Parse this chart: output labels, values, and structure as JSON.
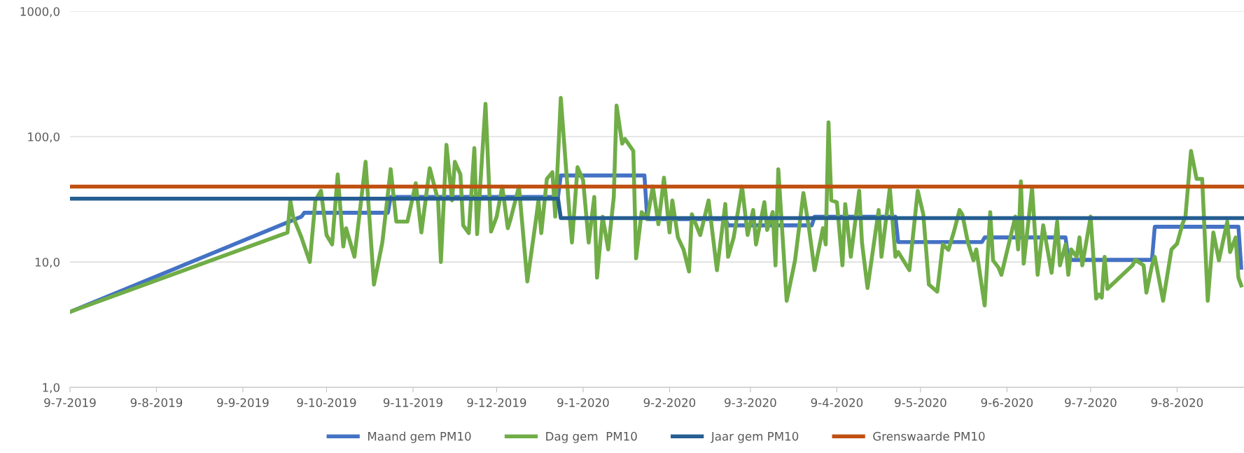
{
  "chart_data": {
    "type": "line",
    "log": "y",
    "grid": "y",
    "legend": "bottom",
    "marker": "none",
    "line_style": "solid",
    "xlim": [
      "2019-07-09",
      "2020-09-02"
    ],
    "xticks": [
      {
        "value": "2019-07-09",
        "label": "9-7-2019"
      },
      {
        "value": "2019-08-09",
        "label": "9-8-2019"
      },
      {
        "value": "2019-09-09",
        "label": "9-9-2019"
      },
      {
        "value": "2019-10-09",
        "label": "9-10-2019"
      },
      {
        "value": "2019-11-09",
        "label": "9-11-2019"
      },
      {
        "value": "2019-12-09",
        "label": "9-12-2019"
      },
      {
        "value": "2020-01-09",
        "label": "9-1-2020"
      },
      {
        "value": "2020-02-09",
        "label": "9-2-2020"
      },
      {
        "value": "2020-03-09",
        "label": "9-3-2020"
      },
      {
        "value": "2020-04-09",
        "label": "9-4-2020"
      },
      {
        "value": "2020-05-09",
        "label": "9-5-2020"
      },
      {
        "value": "2020-06-09",
        "label": "9-6-2020"
      },
      {
        "value": "2020-07-09",
        "label": "9-7-2020"
      },
      {
        "value": "2020-08-09",
        "label": "9-8-2020"
      }
    ],
    "ylim": [
      1,
      1000
    ],
    "yticks": [
      {
        "value": 1,
        "label": "1,0"
      },
      {
        "value": 10,
        "label": "10,0"
      },
      {
        "value": 100,
        "label": "100,0"
      },
      {
        "value": 1000,
        "label": "1000,0"
      }
    ],
    "series": [
      {
        "name": "Maand gem PM10",
        "color": "#4472c4",
        "x": [
          "2019-07-09",
          "2019-09-30",
          "2019-10-01",
          "2019-10-31",
          "2019-11-01",
          "2019-12-31",
          "2020-01-01",
          "2020-01-31",
          "2020-02-01",
          "2020-02-29",
          "2020-03-01",
          "2020-03-31",
          "2020-04-01",
          "2020-04-30",
          "2020-05-01",
          "2020-05-31",
          "2020-06-01",
          "2020-06-30",
          "2020-07-01",
          "2020-07-31",
          "2020-08-01",
          "2020-08-31",
          "2020-09-01"
        ],
        "values": [
          4.0,
          23,
          24.7,
          24.7,
          33,
          33,
          49,
          49,
          22,
          22,
          19.6,
          19.6,
          23,
          23,
          14.4,
          14.4,
          15.7,
          15.7,
          10.4,
          10.4,
          19.1,
          19.1,
          9
        ]
      },
      {
        "name": "Dag gem  PM10",
        "color": "#70ad47",
        "x": [
          "2019-07-09",
          "2019-09-25",
          "2019-09-26",
          "2019-09-27",
          "2019-09-30",
          "2019-10-03",
          "2019-10-05",
          "2019-10-07",
          "2019-10-09",
          "2019-10-11",
          "2019-10-13",
          "2019-10-15",
          "2019-10-16",
          "2019-10-19",
          "2019-10-21",
          "2019-10-23",
          "2019-10-26",
          "2019-10-29",
          "2019-11-01",
          "2019-11-03",
          "2019-11-07",
          "2019-11-10",
          "2019-11-12",
          "2019-11-15",
          "2019-11-18",
          "2019-11-19",
          "2019-11-21",
          "2019-11-23",
          "2019-11-24",
          "2019-11-26",
          "2019-11-27",
          "2019-11-29",
          "2019-12-01",
          "2019-12-02",
          "2019-12-05",
          "2019-12-07",
          "2019-12-09",
          "2019-12-11",
          "2019-12-13",
          "2019-12-14",
          "2019-12-17",
          "2019-12-20",
          "2019-12-23",
          "2019-12-24",
          "2019-12-25",
          "2019-12-27",
          "2019-12-29",
          "2019-12-30",
          "2020-01-01",
          "2020-01-04",
          "2020-01-05",
          "2020-01-07",
          "2020-01-09",
          "2020-01-11",
          "2020-01-13",
          "2020-01-14",
          "2020-01-16",
          "2020-01-18",
          "2020-01-20",
          "2020-01-21",
          "2020-01-23",
          "2020-01-24",
          "2020-01-27",
          "2020-01-28",
          "2020-01-30",
          "2020-02-01",
          "2020-02-03",
          "2020-02-05",
          "2020-02-07",
          "2020-02-09",
          "2020-02-10",
          "2020-02-12",
          "2020-02-14",
          "2020-02-16",
          "2020-02-17",
          "2020-02-20",
          "2020-02-23",
          "2020-02-26",
          "2020-02-29",
          "2020-03-01",
          "2020-03-03",
          "2020-03-06",
          "2020-03-08",
          "2020-03-10",
          "2020-03-11",
          "2020-03-14",
          "2020-03-15",
          "2020-03-17",
          "2020-03-18",
          "2020-03-19",
          "2020-03-22",
          "2020-03-25",
          "2020-03-28",
          "2020-03-30",
          "2020-04-01",
          "2020-04-04",
          "2020-04-05",
          "2020-04-06",
          "2020-04-07",
          "2020-04-09",
          "2020-04-11",
          "2020-04-12",
          "2020-04-14",
          "2020-04-17",
          "2020-04-18",
          "2020-04-20",
          "2020-04-24",
          "2020-04-25",
          "2020-04-28",
          "2020-04-30",
          "2020-05-01",
          "2020-05-05",
          "2020-05-08",
          "2020-05-10",
          "2020-05-12",
          "2020-05-15",
          "2020-05-17",
          "2020-05-19",
          "2020-05-21",
          "2020-05-23",
          "2020-05-24",
          "2020-05-26",
          "2020-05-28",
          "2020-05-29",
          "2020-06-01",
          "2020-06-03",
          "2020-06-04",
          "2020-06-06",
          "2020-06-07",
          "2020-06-12",
          "2020-06-13",
          "2020-06-14",
          "2020-06-15",
          "2020-06-18",
          "2020-06-20",
          "2020-06-22",
          "2020-06-25",
          "2020-06-27",
          "2020-06-28",
          "2020-06-30",
          "2020-07-01",
          "2020-07-02",
          "2020-07-04",
          "2020-07-05",
          "2020-07-06",
          "2020-07-09",
          "2020-07-11",
          "2020-07-12",
          "2020-07-13",
          "2020-07-14",
          "2020-07-15",
          "2020-07-24",
          "2020-07-25",
          "2020-07-28",
          "2020-07-29",
          "2020-07-31",
          "2020-08-01",
          "2020-08-04",
          "2020-08-07",
          "2020-08-09",
          "2020-08-11",
          "2020-08-12",
          "2020-08-14",
          "2020-08-16",
          "2020-08-18",
          "2020-08-20",
          "2020-08-22",
          "2020-08-24",
          "2020-08-27",
          "2020-08-28",
          "2020-08-30",
          "2020-08-31",
          "2020-09-01"
        ],
        "values": [
          4.0,
          17.2,
          31,
          23,
          15.7,
          10,
          31,
          37,
          16.4,
          13.8,
          50,
          13.3,
          18.6,
          11,
          26,
          63,
          6.6,
          14.3,
          55,
          21,
          21,
          42.5,
          17.2,
          56,
          31,
          10,
          86,
          31,
          63,
          50,
          19.6,
          17,
          81,
          16.7,
          183,
          17.5,
          23,
          40,
          18.6,
          22,
          40,
          7,
          21,
          31,
          17,
          46,
          52,
          23,
          204,
          26,
          14.3,
          57,
          45,
          14.3,
          33,
          7.5,
          23,
          12.6,
          33,
          177,
          88,
          96,
          77,
          10.7,
          25,
          22,
          40,
          20,
          47,
          17.2,
          31,
          15.7,
          12.6,
          8.4,
          24,
          16.4,
          31,
          8.6,
          29,
          11,
          15.7,
          40,
          16.4,
          26,
          13.8,
          30,
          18,
          25,
          9.4,
          55,
          4.9,
          10.3,
          35.5,
          18.6,
          8.6,
          18.6,
          13.8,
          130,
          31,
          30,
          9.4,
          29,
          11,
          37,
          14.3,
          6.2,
          26,
          11,
          39,
          11,
          12,
          8.6,
          37,
          24,
          6.6,
          5.8,
          13.8,
          12.5,
          17.5,
          26,
          24,
          14.3,
          10.3,
          12.6,
          4.5,
          25,
          10.3,
          9,
          7.9,
          23,
          12.6,
          44,
          9.7,
          39,
          7.9,
          19.6,
          8.2,
          21,
          9.4,
          13.8,
          7.9,
          12.6,
          11,
          15.7,
          9.4,
          23,
          5.1,
          5.5,
          5.2,
          11,
          6.1,
          9.4,
          10.4,
          9.4,
          5.7,
          9.4,
          11,
          4.9,
          12.6,
          14,
          20.3,
          23,
          77,
          46,
          46,
          4.9,
          17.2,
          10.3,
          21,
          12,
          15.7,
          7.5,
          6.5
        ]
      },
      {
        "name": "Jaar gem PM10",
        "color": "#255e91",
        "x": [
          "2019-07-09",
          "2019-12-31",
          "2020-01-01",
          "2020-09-02"
        ],
        "values": [
          32,
          32,
          22.4,
          22.4
        ]
      },
      {
        "name": "Grenswaarde PM10",
        "color": "#c05011",
        "x": [
          "2019-07-09",
          "2020-09-02"
        ],
        "values": [
          40,
          40
        ]
      }
    ]
  }
}
